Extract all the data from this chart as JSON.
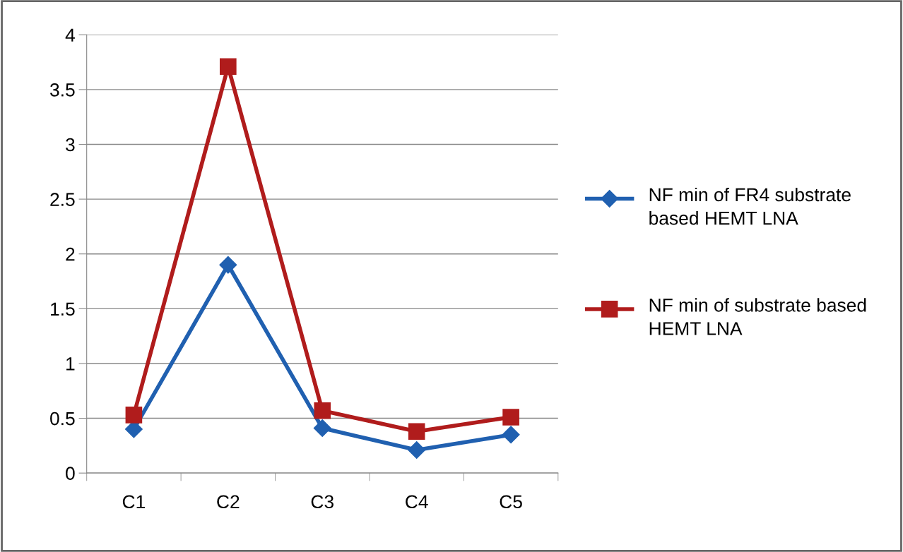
{
  "chart_data": {
    "type": "line",
    "categories": [
      "C1",
      "C2",
      "C3",
      "C4",
      "C5"
    ],
    "series": [
      {
        "name": "NF min of FR4 substrate based HEMT LNA",
        "color": "#2060b0",
        "marker": "diamond",
        "values": [
          0.4,
          1.9,
          0.41,
          0.21,
          0.35
        ]
      },
      {
        "name": "NF min of substrate based HEMT LNA",
        "color": "#b01c1c",
        "marker": "square",
        "values": [
          0.53,
          3.71,
          0.57,
          0.38,
          0.51
        ]
      }
    ],
    "ylim": [
      0,
      4
    ],
    "yticks": [
      0,
      0.5,
      1,
      1.5,
      2,
      2.5,
      3,
      3.5,
      4
    ],
    "grid": "y",
    "legend": "right",
    "line_style": "solid"
  }
}
